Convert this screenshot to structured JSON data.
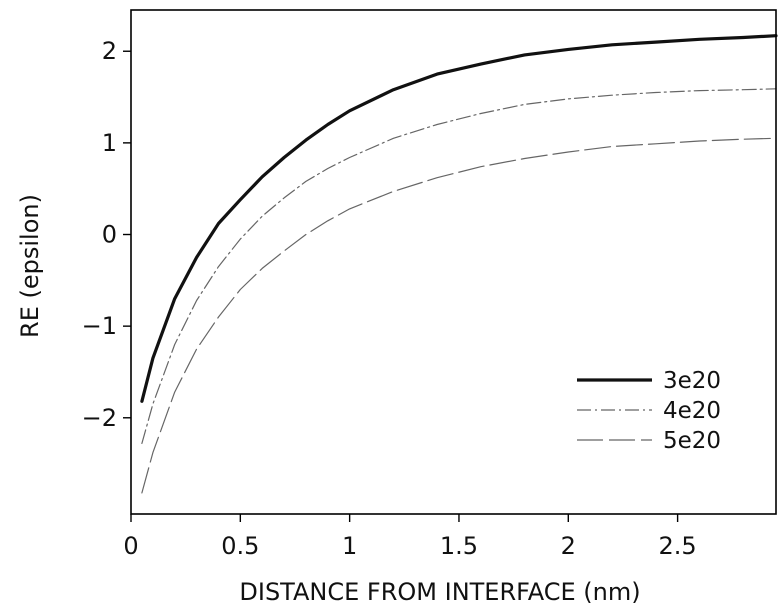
{
  "chart_data": {
    "type": "line",
    "title": "",
    "xlabel": "DISTANCE FROM INTERFACE (nm)",
    "ylabel": "RE (epsilon)",
    "xlim": [
      0,
      2.95
    ],
    "ylim": [
      -3.05,
      2.45
    ],
    "xticks": [
      0,
      0.5,
      1,
      1.5,
      2,
      2.5
    ],
    "xtick_labels": [
      "0",
      "0.5",
      "1",
      "1.5",
      "2",
      "2.5"
    ],
    "yticks": [
      -2,
      -1,
      0,
      1,
      2
    ],
    "ytick_labels": [
      "−2",
      "−1",
      "0",
      "1",
      "2"
    ],
    "grid": false,
    "legend_position": "bottom-right",
    "series": [
      {
        "name": "3e20",
        "style": "solid-thick",
        "color": "#111111",
        "x": [
          0.05,
          0.1,
          0.2,
          0.3,
          0.4,
          0.5,
          0.6,
          0.7,
          0.8,
          0.9,
          1.0,
          1.2,
          1.4,
          1.6,
          1.8,
          2.0,
          2.2,
          2.4,
          2.6,
          2.8,
          2.95
        ],
        "y": [
          -1.82,
          -1.35,
          -0.7,
          -0.25,
          0.12,
          0.38,
          0.63,
          0.84,
          1.03,
          1.2,
          1.35,
          1.58,
          1.75,
          1.86,
          1.96,
          2.02,
          2.07,
          2.1,
          2.13,
          2.15,
          2.17
        ]
      },
      {
        "name": "4e20",
        "style": "dash-dot",
        "color": "#666666",
        "x": [
          0.05,
          0.1,
          0.2,
          0.3,
          0.4,
          0.5,
          0.6,
          0.7,
          0.8,
          0.9,
          1.0,
          1.2,
          1.4,
          1.6,
          1.8,
          2.0,
          2.2,
          2.4,
          2.6,
          2.8,
          2.95
        ],
        "y": [
          -2.28,
          -1.85,
          -1.2,
          -0.72,
          -0.35,
          -0.05,
          0.2,
          0.4,
          0.58,
          0.72,
          0.84,
          1.05,
          1.2,
          1.32,
          1.42,
          1.48,
          1.52,
          1.55,
          1.57,
          1.58,
          1.59
        ]
      },
      {
        "name": "5e20",
        "style": "long-dash",
        "color": "#666666",
        "x": [
          0.05,
          0.1,
          0.2,
          0.3,
          0.4,
          0.5,
          0.6,
          0.7,
          0.8,
          0.9,
          1.0,
          1.2,
          1.4,
          1.6,
          1.8,
          2.0,
          2.2,
          2.4,
          2.6,
          2.8,
          2.95
        ],
        "y": [
          -2.82,
          -2.38,
          -1.72,
          -1.25,
          -0.9,
          -0.6,
          -0.37,
          -0.18,
          0.0,
          0.15,
          0.28,
          0.47,
          0.62,
          0.74,
          0.83,
          0.9,
          0.96,
          0.99,
          1.02,
          1.04,
          1.05
        ]
      }
    ]
  }
}
